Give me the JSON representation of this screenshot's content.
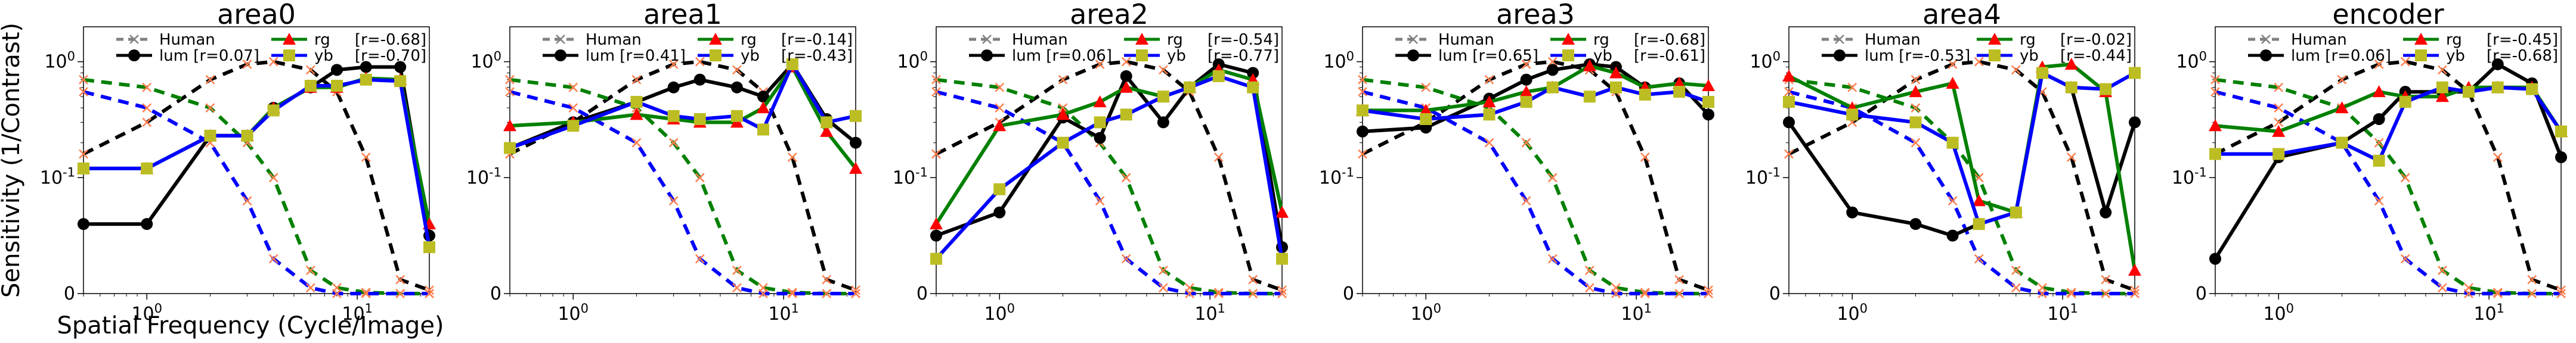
{
  "figure": {
    "ylabel": "Sensitivity (1/Contrast)",
    "xlabel": "Spatial Frequency (Cycle/Image)"
  },
  "colors": {
    "human": "#808080",
    "lum": "#000000",
    "rg_line": "#008000",
    "rg_marker": "#ff0000",
    "yb_line": "#0000ff",
    "yb_marker": "#bcbd22",
    "human_marker": "#ff7f50"
  },
  "chart_data": [
    {
      "type": "line",
      "title": "area0",
      "x_scale": "log",
      "y_scale": "symlog",
      "xlim": [
        0.5,
        22
      ],
      "ylim": [
        0,
        2
      ],
      "x_ticks": [
        "10^0",
        "10^1"
      ],
      "y_ticks": [
        "0",
        "10^-1",
        "10^0"
      ],
      "legend_position": "top-center",
      "legend": [
        {
          "series": "Human",
          "label": "Human"
        },
        {
          "series": "lum",
          "label": "lum [r=0.07]"
        },
        {
          "series": "rg",
          "label": "rg",
          "r": "[r=-0.68]"
        },
        {
          "series": "yb",
          "label": "yb",
          "r": "[r=-0.70]"
        }
      ],
      "series": [
        {
          "name": "lum",
          "x": [
            0.5,
            1,
            2,
            3,
            4,
            6,
            8,
            11,
            16,
            22
          ],
          "y": [
            0.06,
            0.06,
            0.23,
            0.23,
            0.4,
            0.6,
            0.85,
            0.9,
            0.9,
            0.05
          ]
        },
        {
          "name": "rg",
          "x": [
            0.5,
            1,
            2,
            3,
            4,
            6,
            8,
            11,
            16,
            22
          ],
          "y": [
            0.12,
            0.12,
            0.23,
            0.23,
            0.4,
            0.6,
            0.6,
            0.72,
            0.7,
            0.06
          ]
        },
        {
          "name": "yb",
          "x": [
            0.5,
            1,
            2,
            3,
            4,
            6,
            8,
            11,
            16,
            22
          ],
          "y": [
            0.12,
            0.12,
            0.23,
            0.23,
            0.38,
            0.62,
            0.62,
            0.7,
            0.68,
            0.04
          ]
        }
      ]
    },
    {
      "type": "line",
      "title": "area1",
      "x_scale": "log",
      "y_scale": "symlog",
      "xlim": [
        0.5,
        22
      ],
      "ylim": [
        0,
        2
      ],
      "x_ticks": [
        "10^0",
        "10^1"
      ],
      "y_ticks": [
        "0",
        "10^-1",
        "10^0"
      ],
      "legend_position": "top-center",
      "legend": [
        {
          "series": "Human",
          "label": "Human"
        },
        {
          "series": "lum",
          "label": "lum [r=0.41]"
        },
        {
          "series": "rg",
          "label": "rg",
          "r": "[r=-0.14]"
        },
        {
          "series": "yb",
          "label": "yb",
          "r": "[r=-0.43]"
        }
      ],
      "series": [
        {
          "name": "lum",
          "x": [
            0.5,
            1,
            2,
            3,
            4,
            6,
            8,
            11,
            16,
            22
          ],
          "y": [
            0.18,
            0.3,
            0.45,
            0.6,
            0.7,
            0.6,
            0.5,
            0.95,
            0.32,
            0.2
          ]
        },
        {
          "name": "rg",
          "x": [
            0.5,
            1,
            2,
            3,
            4,
            6,
            8,
            11,
            16,
            22
          ],
          "y": [
            0.28,
            0.3,
            0.35,
            0.32,
            0.3,
            0.3,
            0.4,
            0.9,
            0.25,
            0.12
          ]
        },
        {
          "name": "yb",
          "x": [
            0.5,
            1,
            2,
            3,
            4,
            6,
            8,
            11,
            16,
            22
          ],
          "y": [
            0.18,
            0.28,
            0.45,
            0.34,
            0.32,
            0.34,
            0.26,
            0.95,
            0.3,
            0.34
          ]
        }
      ]
    },
    {
      "type": "line",
      "title": "area2",
      "x_scale": "log",
      "y_scale": "symlog",
      "xlim": [
        0.5,
        22
      ],
      "ylim": [
        0,
        2
      ],
      "x_ticks": [
        "10^0",
        "10^1"
      ],
      "y_ticks": [
        "0",
        "10^-1",
        "10^0"
      ],
      "legend_position": "top-center",
      "legend": [
        {
          "series": "Human",
          "label": "Human"
        },
        {
          "series": "lum",
          "label": "lum [r=0.06]"
        },
        {
          "series": "rg",
          "label": "rg",
          "r": "[r=-0.54]"
        },
        {
          "series": "yb",
          "label": "yb",
          "r": "[r=-0.77]"
        }
      ],
      "series": [
        {
          "name": "lum",
          "x": [
            0.5,
            1,
            2,
            3,
            4,
            6,
            8,
            11,
            16,
            22
          ],
          "y": [
            0.05,
            0.07,
            0.33,
            0.22,
            0.75,
            0.3,
            0.6,
            0.95,
            0.8,
            0.04
          ]
        },
        {
          "name": "rg",
          "x": [
            0.5,
            1,
            2,
            3,
            4,
            6,
            8,
            11,
            16,
            22
          ],
          "y": [
            0.06,
            0.28,
            0.35,
            0.45,
            0.6,
            0.5,
            0.6,
            0.85,
            0.7,
            0.07
          ]
        },
        {
          "name": "yb",
          "x": [
            0.5,
            1,
            2,
            3,
            4,
            6,
            8,
            11,
            16,
            22
          ],
          "y": [
            0.03,
            0.09,
            0.2,
            0.3,
            0.35,
            0.5,
            0.6,
            0.75,
            0.6,
            0.03
          ]
        }
      ]
    },
    {
      "type": "line",
      "title": "area3",
      "x_scale": "log",
      "y_scale": "symlog",
      "xlim": [
        0.5,
        22
      ],
      "ylim": [
        0,
        2
      ],
      "x_ticks": [
        "10^0",
        "10^1"
      ],
      "y_ticks": [
        "0",
        "10^-1",
        "10^0"
      ],
      "legend_position": "top-center",
      "legend": [
        {
          "series": "Human",
          "label": "Human"
        },
        {
          "series": "lum",
          "label": "lum [r=0.65]"
        },
        {
          "series": "rg",
          "label": "rg",
          "r": "[r=-0.68]"
        },
        {
          "series": "yb",
          "label": "yb",
          "r": "[r=-0.61]"
        }
      ],
      "series": [
        {
          "name": "lum",
          "x": [
            0.5,
            1,
            2,
            3,
            4,
            6,
            8,
            11,
            16,
            22
          ],
          "y": [
            0.25,
            0.27,
            0.48,
            0.7,
            0.85,
            0.95,
            0.9,
            0.6,
            0.65,
            0.35
          ]
        },
        {
          "name": "rg",
          "x": [
            0.5,
            1,
            2,
            3,
            4,
            6,
            8,
            11,
            16,
            22
          ],
          "y": [
            0.38,
            0.38,
            0.45,
            0.55,
            0.6,
            0.92,
            0.8,
            0.6,
            0.65,
            0.62
          ]
        },
        {
          "name": "yb",
          "x": [
            0.5,
            1,
            2,
            3,
            4,
            6,
            8,
            11,
            16,
            22
          ],
          "y": [
            0.38,
            0.32,
            0.35,
            0.45,
            0.6,
            0.5,
            0.6,
            0.52,
            0.55,
            0.45
          ]
        }
      ]
    },
    {
      "type": "line",
      "title": "area4",
      "x_scale": "log",
      "y_scale": "symlog",
      "xlim": [
        0.5,
        22
      ],
      "ylim": [
        0,
        2
      ],
      "x_ticks": [
        "10^0",
        "10^1"
      ],
      "y_ticks": [
        "0",
        "10^-1",
        "10^0"
      ],
      "legend_position": "top-center",
      "legend": [
        {
          "series": "Human",
          "label": "Human"
        },
        {
          "series": "lum",
          "label": "lum [r=-0.53]"
        },
        {
          "series": "rg",
          "label": "rg",
          "r": "[r=-0.02]"
        },
        {
          "series": "yb",
          "label": "yb",
          "r": "[r=-0.44]"
        }
      ],
      "series": [
        {
          "name": "lum",
          "x": [
            0.5,
            1,
            2,
            3,
            4,
            6,
            8,
            11,
            16,
            22
          ],
          "y": [
            0.3,
            0.07,
            0.06,
            0.05,
            0.06,
            0.07,
            0.8,
            0.6,
            0.07,
            0.3
          ]
        },
        {
          "name": "rg",
          "x": [
            0.5,
            1,
            2,
            3,
            4,
            6,
            8,
            11,
            16,
            22
          ],
          "y": [
            0.75,
            0.4,
            0.55,
            0.65,
            0.08,
            0.07,
            0.9,
            0.95,
            0.55,
            0.02
          ]
        },
        {
          "name": "yb",
          "x": [
            0.5,
            1,
            2,
            3,
            4,
            6,
            8,
            11,
            16,
            22
          ],
          "y": [
            0.45,
            0.35,
            0.3,
            0.2,
            0.06,
            0.07,
            0.8,
            0.6,
            0.58,
            0.8
          ]
        }
      ]
    },
    {
      "type": "line",
      "title": "encoder",
      "x_scale": "log",
      "y_scale": "symlog",
      "xlim": [
        0.5,
        22
      ],
      "ylim": [
        0,
        2
      ],
      "x_ticks": [
        "10^0",
        "10^1"
      ],
      "y_ticks": [
        "0",
        "10^-1",
        "10^0"
      ],
      "legend_position": "top-center",
      "legend": [
        {
          "series": "Human",
          "label": "Human"
        },
        {
          "series": "lum",
          "label": "lum [r=0.06]"
        },
        {
          "series": "rg",
          "label": "rg",
          "r": "[r=-0.45]"
        },
        {
          "series": "yb",
          "label": "yb",
          "r": "[r=-0.68]"
        }
      ],
      "series": [
        {
          "name": "lum",
          "x": [
            0.5,
            1,
            2,
            3,
            4,
            6,
            8,
            11,
            16,
            22
          ],
          "y": [
            0.03,
            0.15,
            0.2,
            0.32,
            0.55,
            0.55,
            0.55,
            0.95,
            0.65,
            0.15
          ]
        },
        {
          "name": "rg",
          "x": [
            0.5,
            1,
            2,
            3,
            4,
            6,
            8,
            11,
            16,
            22
          ],
          "y": [
            0.28,
            0.25,
            0.4,
            0.55,
            0.5,
            0.5,
            0.6,
            0.6,
            0.6,
            0.25
          ]
        },
        {
          "name": "yb",
          "x": [
            0.5,
            1,
            2,
            3,
            4,
            6,
            8,
            11,
            16,
            22
          ],
          "y": [
            0.16,
            0.16,
            0.2,
            0.14,
            0.45,
            0.6,
            0.55,
            0.6,
            0.58,
            0.25
          ]
        }
      ]
    }
  ],
  "human_curves": [
    {
      "name": "Human",
      "label": "Human lum",
      "x": [
        0.5,
        1,
        2,
        3,
        4,
        6,
        8,
        11,
        16,
        22
      ],
      "y": [
        0.16,
        0.3,
        0.7,
        0.95,
        1.0,
        0.85,
        0.55,
        0.15,
        0.012,
        0.003
      ]
    },
    {
      "name": "Human",
      "label": "Human rg",
      "x": [
        0.5,
        1,
        2,
        3,
        4,
        6,
        8,
        11,
        16,
        22
      ],
      "y": [
        0.7,
        0.6,
        0.4,
        0.2,
        0.1,
        0.02,
        0.005,
        0.001,
        0.0,
        0.0
      ]
    },
    {
      "name": "Human",
      "label": "Human yb",
      "x": [
        0.5,
        1,
        2,
        3,
        4,
        6,
        8,
        11,
        16,
        22
      ],
      "y": [
        0.55,
        0.4,
        0.2,
        0.08,
        0.03,
        0.005,
        0.0,
        0.0,
        0.0,
        0.0
      ]
    }
  ]
}
